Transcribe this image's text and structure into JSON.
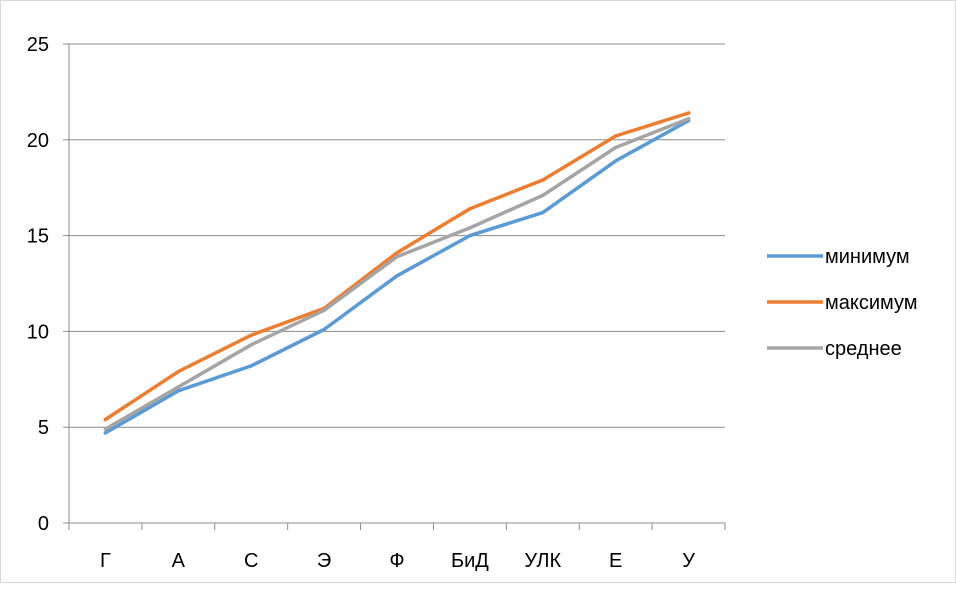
{
  "chart_data": {
    "type": "line",
    "title": "",
    "xlabel": "",
    "ylabel": "",
    "categories": [
      "Г",
      "А",
      "С",
      "Э",
      "Ф",
      "БиД",
      "УЛК",
      "Е",
      "У"
    ],
    "ylim": [
      0,
      25
    ],
    "yticks": [
      0,
      5,
      10,
      15,
      20,
      25
    ],
    "grid": true,
    "legend_position": "right",
    "series": [
      {
        "name": "минимум",
        "color": "#5b9bd5",
        "values": [
          4.7,
          6.9,
          8.2,
          10.1,
          12.9,
          15.0,
          16.2,
          18.9,
          21.0
        ]
      },
      {
        "name": "максимум",
        "color": "#ed7d31",
        "values": [
          5.4,
          7.9,
          9.8,
          11.2,
          14.1,
          16.4,
          17.9,
          20.2,
          21.4
        ]
      },
      {
        "name": "среднее",
        "color": "#a5a5a5",
        "values": [
          4.9,
          7.1,
          9.3,
          11.1,
          13.9,
          15.4,
          17.1,
          19.6,
          21.1
        ]
      }
    ]
  }
}
